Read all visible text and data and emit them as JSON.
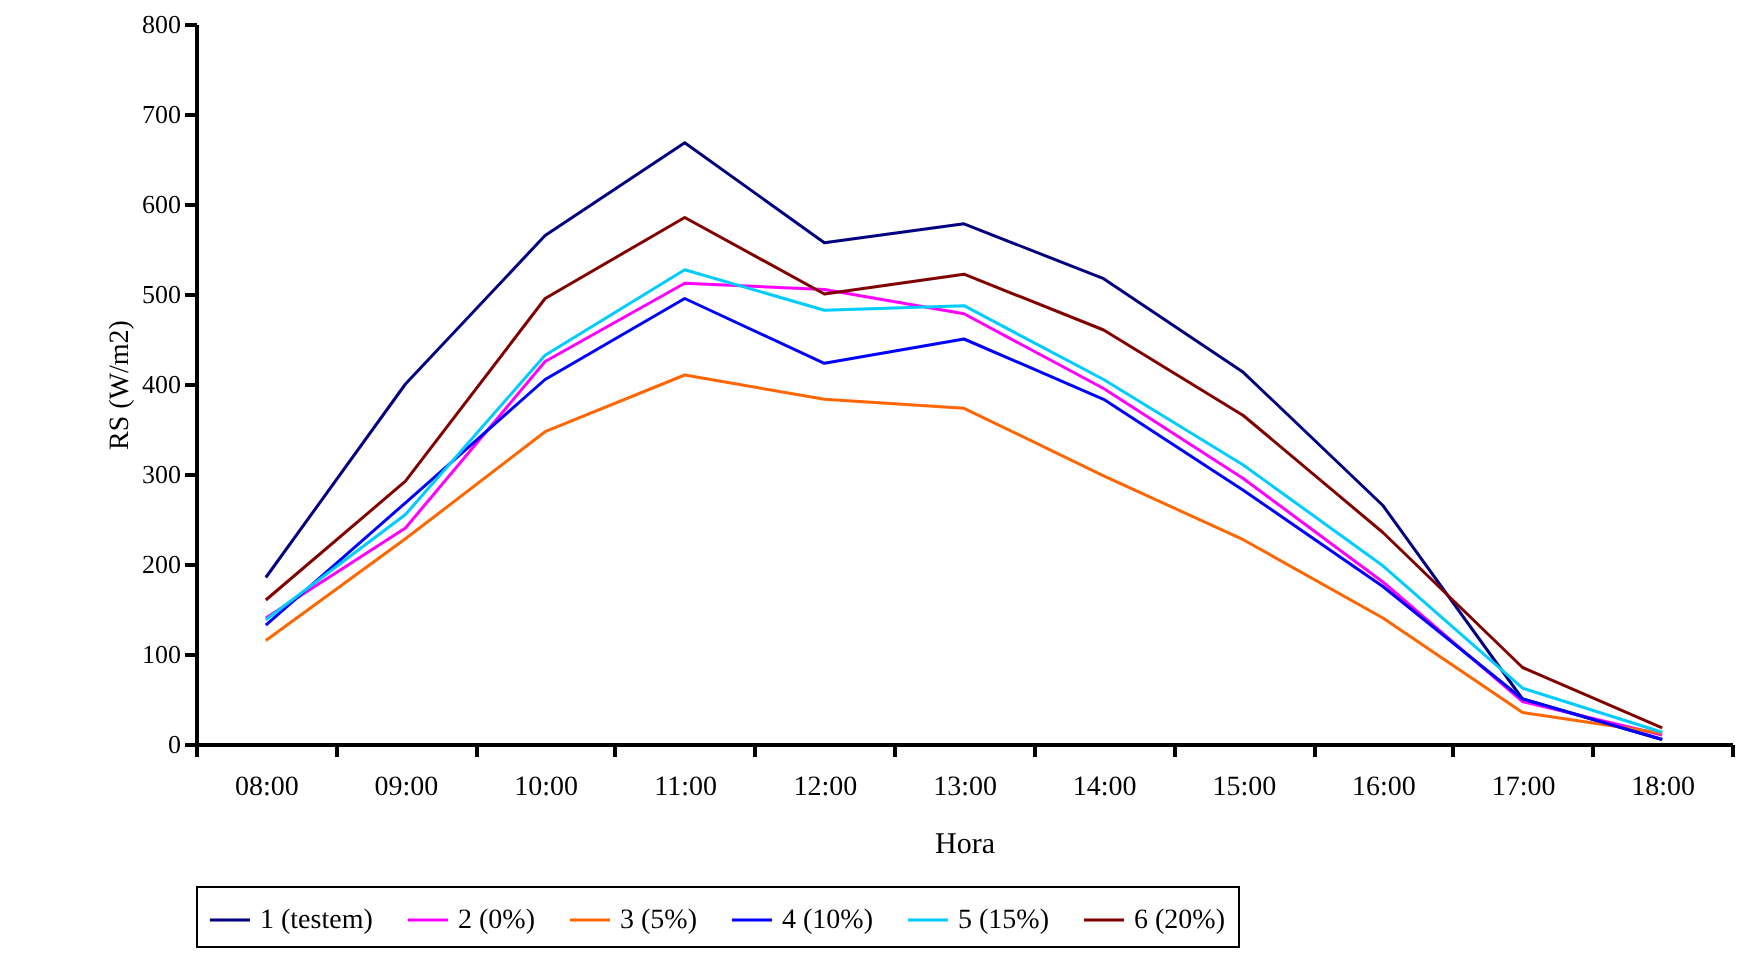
{
  "chart_data": {
    "type": "line",
    "xlabel": "Hora",
    "ylabel": "RS (W/m2)",
    "categories": [
      "08:00",
      "09:00",
      "10:00",
      "11:00",
      "12:00",
      "13:00",
      "14:00",
      "15:00",
      "16:00",
      "17:00",
      "18:00"
    ],
    "series": [
      {
        "name": "1 (testem)",
        "color": "#000080",
        "values": [
          185,
          400,
          565,
          668,
          557,
          578,
          517,
          413,
          265,
          50,
          5
        ]
      },
      {
        "name": "2 (0%)",
        "color": "#ff00ff",
        "values": [
          140,
          240,
          425,
          512,
          505,
          478,
          395,
          295,
          180,
          47,
          10
        ]
      },
      {
        "name": "3 (5%)",
        "color": "#ff6600",
        "values": [
          115,
          228,
          347,
          410,
          383,
          373,
          298,
          227,
          140,
          35,
          12
        ]
      },
      {
        "name": "4 (10%)",
        "color": "#0000ff",
        "values": [
          132,
          268,
          405,
          495,
          423,
          450,
          383,
          282,
          175,
          50,
          5
        ]
      },
      {
        "name": "5 (15%)",
        "color": "#00ccff",
        "values": [
          138,
          255,
          432,
          527,
          482,
          487,
          405,
          310,
          198,
          62,
          13
        ]
      },
      {
        "name": "6 (20%)",
        "color": "#800000",
        "values": [
          160,
          292,
          495,
          585,
          500,
          522,
          460,
          365,
          235,
          85,
          18
        ]
      }
    ],
    "ylim": [
      0,
      800
    ],
    "yticks": [
      0,
      100,
      200,
      300,
      400,
      500,
      600,
      700,
      800
    ],
    "grid": false,
    "legend": "bottom"
  }
}
